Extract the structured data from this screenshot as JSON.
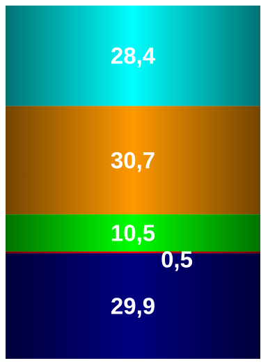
{
  "chart_data": {
    "type": "bar",
    "stacked": true,
    "title": "",
    "xlabel": "",
    "ylabel": "",
    "categories": [
      ""
    ],
    "series": [
      {
        "label": "29,9",
        "values": [
          29.9
        ],
        "color": "#000080"
      },
      {
        "label": "0,5",
        "values": [
          0.5
        ],
        "color": "#ff0000"
      },
      {
        "label": "10,5",
        "values": [
          10.5
        ],
        "color": "#00ff00"
      },
      {
        "label": "30,7",
        "values": [
          30.7
        ],
        "color": "#ff9900"
      },
      {
        "label": "28,4",
        "values": [
          28.4
        ],
        "color": "#00ffff"
      }
    ],
    "ylim": [
      0,
      100
    ],
    "grid": false,
    "legend": "none"
  }
}
